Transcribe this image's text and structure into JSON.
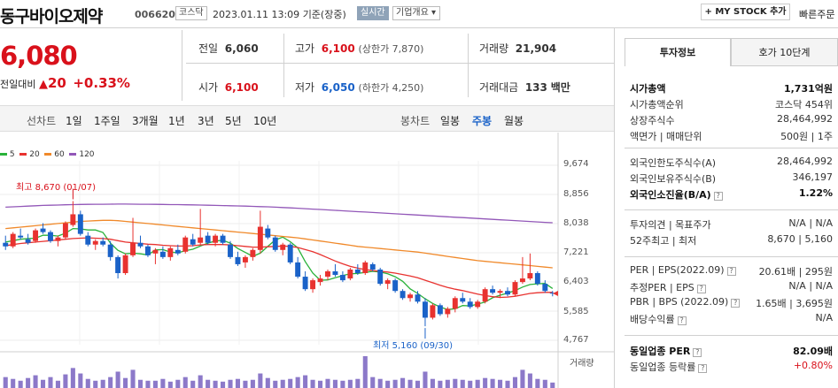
{
  "header": {
    "company": "동구바이오제약",
    "code": "006620",
    "market_badge": "코스닥",
    "datetime": "2023.01.11 13:09",
    "basis": "기준(장중)",
    "realtime_badge": "실시간",
    "overview_btn": "기업개요",
    "overview_chevron": "▾",
    "mystock_btn": "+ MY STOCK 추가",
    "quick_btn": "빠른주문"
  },
  "price": {
    "current": "6,080",
    "change_label": "전일대비",
    "change_arrow": "▲",
    "change_value": "20",
    "change_pct": "+0.33%"
  },
  "summary": {
    "prev_label": "전일",
    "prev_value": "6,060",
    "high_label": "고가",
    "high_value": "6,100",
    "upper_label": "(상한가 7,870)",
    "volume_label": "거래량",
    "volume_value": "21,904",
    "open_label": "시가",
    "open_value": "6,100",
    "low_label": "저가",
    "low_value": "6,050",
    "lower_label": "(하한가 4,250)",
    "amount_label": "거래대금",
    "amount_value": "133",
    "amount_unit": "백만"
  },
  "toolbar": {
    "line_label": "선차트",
    "periods": [
      "1일",
      "1주일",
      "3개월",
      "1년",
      "3년",
      "5년",
      "10년"
    ],
    "candle_label": "봉차트",
    "candle_types": [
      "일봉",
      "주봉",
      "월봉"
    ],
    "selected_candle": "주봉"
  },
  "chart_data": {
    "type": "candlestick",
    "ma_legend": [
      {
        "name": "5",
        "color": "#29b23a"
      },
      {
        "name": "20",
        "color": "#e8322f"
      },
      {
        "name": "60",
        "color": "#f0892a"
      },
      {
        "name": "120",
        "color": "#9257b8"
      }
    ],
    "y_ticks": [
      "9,674",
      "8,856",
      "8,038",
      "7,221",
      "6,403",
      "5,585",
      "4,767"
    ],
    "ylim": [
      4767,
      9674
    ],
    "volume_label": "거래량",
    "annotations": {
      "high": "최고 8,670 (01/07)",
      "low": "최저 5,160 (09/30)"
    },
    "candles": [
      [
        7500,
        7700,
        7300,
        7400
      ],
      [
        7400,
        7800,
        7350,
        7750
      ],
      [
        7700,
        7900,
        7600,
        7650
      ],
      [
        7600,
        7750,
        7450,
        7500
      ],
      [
        7550,
        7900,
        7500,
        7850
      ],
      [
        7900,
        8050,
        7750,
        7800
      ],
      [
        7800,
        7850,
        7500,
        7550
      ],
      [
        7550,
        7700,
        7400,
        7650
      ],
      [
        7650,
        8100,
        7600,
        8050
      ],
      [
        8000,
        8670,
        7950,
        8300
      ],
      [
        8300,
        8400,
        7700,
        7750
      ],
      [
        7700,
        7800,
        7400,
        7450
      ],
      [
        7450,
        7600,
        7300,
        7550
      ],
      [
        7550,
        7650,
        7400,
        7450
      ],
      [
        7450,
        7550,
        7000,
        7100
      ],
      [
        7100,
        7150,
        6500,
        6650
      ],
      [
        6650,
        7200,
        6600,
        7150
      ],
      [
        7150,
        8200,
        7100,
        7500
      ],
      [
        7500,
        7700,
        7350,
        7400
      ],
      [
        7400,
        7450,
        7100,
        7150
      ],
      [
        7200,
        7350,
        6900,
        7300
      ],
      [
        7250,
        7400,
        7050,
        7100
      ],
      [
        7100,
        7400,
        7000,
        7350
      ],
      [
        7300,
        7450,
        7150,
        7200
      ],
      [
        7250,
        7700,
        7200,
        7650
      ],
      [
        7600,
        7750,
        7400,
        7450
      ],
      [
        7500,
        8450,
        7450,
        7650
      ],
      [
        7700,
        7800,
        7450,
        7500
      ],
      [
        7500,
        7750,
        7400,
        7700
      ],
      [
        7700,
        7750,
        7450,
        7500
      ],
      [
        7450,
        7550,
        7050,
        7100
      ],
      [
        7100,
        7250,
        6850,
        6900
      ],
      [
        6950,
        7150,
        6800,
        7100
      ],
      [
        7100,
        7350,
        7000,
        7300
      ],
      [
        7300,
        8400,
        7200,
        7950
      ],
      [
        7900,
        8000,
        7600,
        7650
      ],
      [
        7650,
        7700,
        7250,
        7300
      ],
      [
        7300,
        7500,
        7150,
        7450
      ],
      [
        7450,
        7500,
        6900,
        6950
      ],
      [
        6950,
        7100,
        6500,
        6550
      ],
      [
        6550,
        6700,
        6150,
        6200
      ],
      [
        6200,
        6500,
        6100,
        6450
      ],
      [
        6400,
        6600,
        6300,
        6500
      ],
      [
        6550,
        6750,
        6450,
        6700
      ],
      [
        6700,
        6900,
        6550,
        6600
      ],
      [
        6600,
        6700,
        6400,
        6450
      ],
      [
        6500,
        6800,
        6450,
        6750
      ],
      [
        6750,
        6900,
        6600,
        6650
      ],
      [
        6650,
        7000,
        6600,
        6950
      ],
      [
        6900,
        6950,
        6700,
        6750
      ],
      [
        6750,
        6800,
        6300,
        6350
      ],
      [
        6350,
        6500,
        6200,
        6450
      ],
      [
        6450,
        6500,
        6100,
        6150
      ],
      [
        6150,
        6200,
        5900,
        5950
      ],
      [
        5950,
        6100,
        5850,
        6050
      ],
      [
        6050,
        6150,
        5800,
        5850
      ],
      [
        5850,
        5950,
        5160,
        5400
      ],
      [
        5400,
        5800,
        5350,
        5750
      ],
      [
        5750,
        5800,
        5450,
        5500
      ],
      [
        5500,
        5700,
        5400,
        5650
      ],
      [
        5650,
        6000,
        5550,
        5950
      ],
      [
        5950,
        6100,
        5800,
        5850
      ],
      [
        5850,
        5950,
        5650,
        5700
      ],
      [
        5700,
        5900,
        5650,
        5850
      ],
      [
        5850,
        6250,
        5800,
        6200
      ],
      [
        6200,
        6300,
        6050,
        6100
      ],
      [
        6100,
        6200,
        5950,
        6150
      ],
      [
        6150,
        6250,
        6000,
        6050
      ],
      [
        6050,
        6450,
        6000,
        6400
      ],
      [
        6400,
        7100,
        6350,
        6500
      ],
      [
        6500,
        7200,
        6450,
        6650
      ],
      [
        6650,
        6700,
        6300,
        6350
      ],
      [
        6350,
        6450,
        6100,
        6150
      ],
      [
        6100,
        6150,
        6000,
        6080
      ]
    ],
    "ma5": [
      7520,
      7560,
      7600,
      7620,
      7630,
      7710,
      7710,
      7690,
      7770,
      7900,
      7890,
      7860,
      7860,
      7790,
      7490,
      7290,
      7190,
      7210,
      7190,
      7160,
      7300,
      7310,
      7240,
      7220,
      7280,
      7320,
      7410,
      7490,
      7550,
      7570,
      7490,
      7340,
      7230,
      7120,
      7210,
      7400,
      7580,
      7660,
      7530,
      7360,
      6970,
      6650,
      6450,
      6460,
      6520,
      6580,
      6630,
      6640,
      6670,
      6700,
      6680,
      6630,
      6550,
      6420,
      6210,
      6080,
      5930,
      5800,
      5700,
      5630,
      5650,
      5740,
      5730,
      5780,
      5840,
      5960,
      6030,
      6090,
      6160,
      6260,
      6330,
      6350,
      6360,
      6220
    ],
    "ma20": [
      7420,
      7450,
      7480,
      7500,
      7520,
      7540,
      7560,
      7580,
      7600,
      7620,
      7630,
      7640,
      7630,
      7620,
      7600,
      7560,
      7520,
      7500,
      7480,
      7460,
      7450,
      7430,
      7420,
      7410,
      7410,
      7420,
      7440,
      7450,
      7450,
      7450,
      7440,
      7420,
      7400,
      7380,
      7380,
      7390,
      7400,
      7410,
      7400,
      7370,
      7310,
      7250,
      7170,
      7080,
      6990,
      6910,
      6840,
      6790,
      6750,
      6720,
      6700,
      6680,
      6650,
      6610,
      6570,
      6520,
      6450,
      6380,
      6310,
      6250,
      6200,
      6160,
      6110,
      6060,
      6020,
      5990,
      5970,
      5980,
      6000,
      6040,
      6080,
      6100,
      6110,
      6110
    ],
    "ma60": [
      7900,
      7920,
      7940,
      7960,
      7980,
      8000,
      8020,
      8040,
      8060,
      8080,
      8100,
      8110,
      8120,
      8130,
      8130,
      8120,
      8100,
      8080,
      8060,
      8040,
      8020,
      8000,
      7980,
      7960,
      7940,
      7920,
      7900,
      7880,
      7860,
      7840,
      7820,
      7800,
      7780,
      7760,
      7740,
      7720,
      7700,
      7680,
      7660,
      7640,
      7610,
      7580,
      7550,
      7520,
      7490,
      7460,
      7430,
      7400,
      7380,
      7360,
      7340,
      7320,
      7300,
      7280,
      7260,
      7240,
      7210,
      7180,
      7150,
      7120,
      7090,
      7060,
      7030,
      7000,
      6980,
      6960,
      6940,
      6920,
      6900,
      6880,
      6860,
      6840,
      6820,
      6800
    ],
    "ma120": [
      8500,
      8510,
      8520,
      8530,
      8540,
      8550,
      8555,
      8560,
      8565,
      8570,
      8575,
      8578,
      8580,
      8582,
      8584,
      8585,
      8585,
      8584,
      8582,
      8580,
      8578,
      8575,
      8572,
      8570,
      8567,
      8564,
      8560,
      8555,
      8550,
      8545,
      8540,
      8535,
      8530,
      8522,
      8515,
      8508,
      8500,
      8490,
      8480,
      8470,
      8458,
      8446,
      8434,
      8422,
      8410,
      8398,
      8386,
      8374,
      8362,
      8350,
      8338,
      8326,
      8314,
      8302,
      8290,
      8278,
      8266,
      8254,
      8242,
      8230,
      8218,
      8206,
      8194,
      8182,
      8170,
      8158,
      8146,
      8134,
      8122,
      8110,
      8098,
      8086,
      8074,
      8062
    ],
    "volumes": [
      12,
      10,
      8,
      11,
      14,
      9,
      12,
      8,
      15,
      22,
      16,
      10,
      8,
      9,
      12,
      18,
      11,
      20,
      9,
      8,
      8,
      10,
      7,
      9,
      12,
      8,
      14,
      9,
      8,
      7,
      9,
      10,
      8,
      9,
      16,
      11,
      8,
      9,
      10,
      12,
      14,
      9,
      8,
      10,
      9,
      8,
      9,
      10,
      35,
      12,
      10,
      8,
      9,
      11,
      9,
      8,
      18,
      10,
      8,
      9,
      10,
      9,
      8,
      9,
      11,
      10,
      9,
      8,
      12,
      20,
      16,
      10,
      9,
      6
    ]
  },
  "right_panel": {
    "tabs": [
      "투자정보",
      "호가 10단계"
    ],
    "rows": [
      {
        "label": "시가총액",
        "value": "1,731억원",
        "bold": true
      },
      {
        "label": "시가총액순위",
        "value": "코스닥 454위"
      },
      {
        "label": "상장주식수",
        "value": "28,464,992"
      },
      {
        "label": "액면가 | 매매단위",
        "value": "500원 | 1주"
      },
      {
        "label": "외국인한도주식수(A)",
        "value": "28,464,992"
      },
      {
        "label": "외국인보유주식수(B)",
        "value": "346,197"
      },
      {
        "label": "외국인소진율(B/A)",
        "value": "1.22%",
        "bold": true,
        "help": "?"
      },
      {
        "label": "투자의견 | 목표주가",
        "value": "N/A | N/A"
      },
      {
        "label": "52주최고 | 최저",
        "value": "8,670 | 5,160"
      },
      {
        "label": "PER | EPS(2022.09)",
        "value": "20.61배 | 295원",
        "help": "?"
      },
      {
        "label": "추정PER | EPS",
        "value": "N/A | N/A",
        "help": "?"
      },
      {
        "label": "PBR | BPS (2022.09)",
        "value": "1.65배 | 3,695원",
        "help": "?"
      },
      {
        "label": "배당수익률",
        "value": "N/A",
        "help": "?"
      },
      {
        "label": "동일업종 PER",
        "value": "82.09배",
        "bold": true,
        "help": "?"
      },
      {
        "label": "동일업종 등락률",
        "value": "+0.80%",
        "red": true,
        "help": "?"
      }
    ]
  }
}
